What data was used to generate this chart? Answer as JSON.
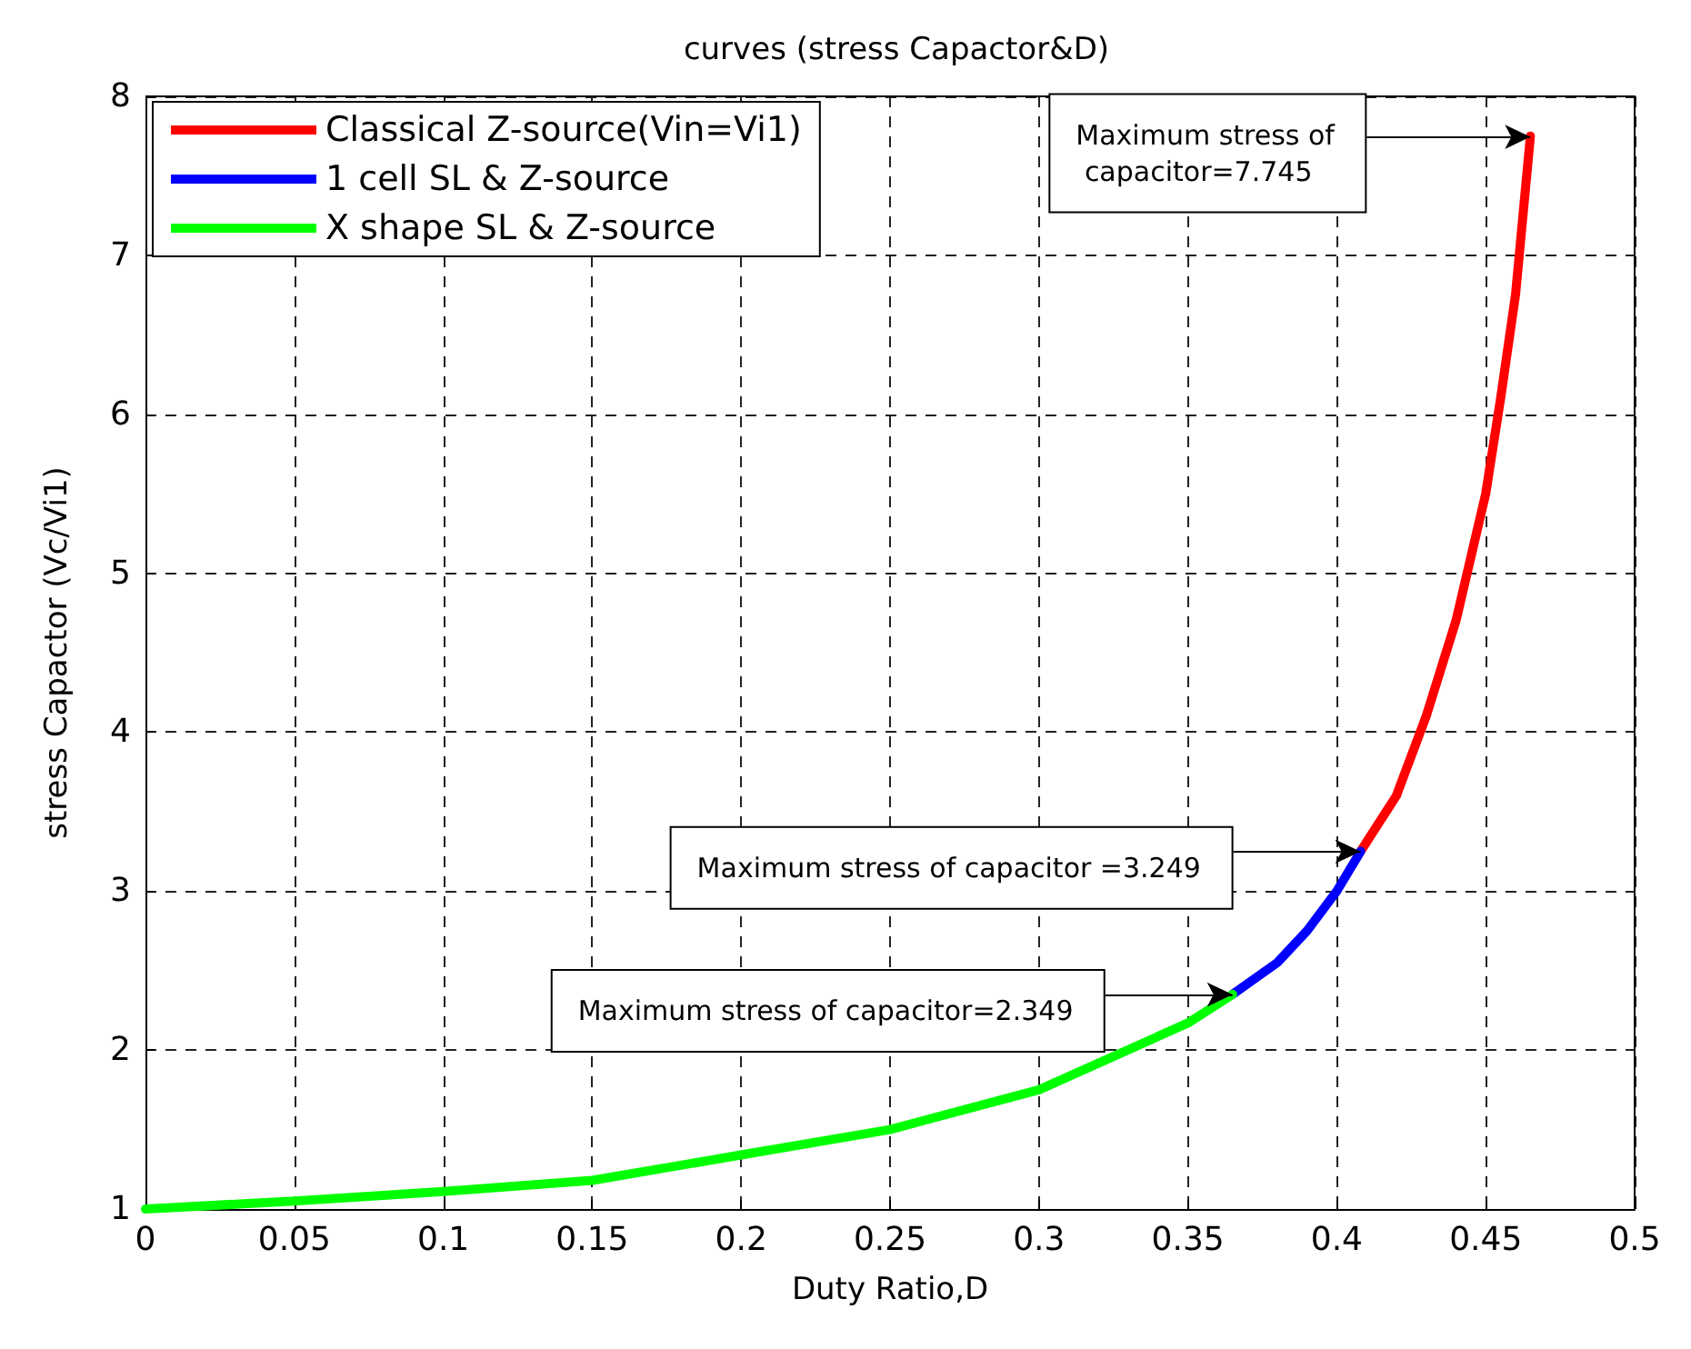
{
  "chart_data": {
    "type": "line",
    "title": "curves (stress Capactor&D)",
    "xlabel": "Duty Ratio,D",
    "ylabel": "stress Capactor (Vc/Vi1)",
    "xlim": [
      0,
      0.5
    ],
    "xticks": [
      0,
      0.05,
      0.1,
      0.15,
      0.2,
      0.25,
      0.3,
      0.35,
      0.4,
      0.45,
      0.5
    ],
    "ylim": [
      1,
      8
    ],
    "yticks": [
      1,
      2,
      3,
      4,
      5,
      6,
      7,
      8
    ],
    "grid": true,
    "legend": "top left",
    "line_style": "solid",
    "marker": "none",
    "series": [
      {
        "name": "Classical Z-source(Vin=Vi1)",
        "color": "#ff0000",
        "x": [
          0.408,
          0.42,
          0.43,
          0.44,
          0.45,
          0.455,
          0.46,
          0.465
        ],
        "values": [
          3.25,
          3.6,
          4.1,
          4.7,
          5.5,
          6.1,
          6.75,
          7.75
        ]
      },
      {
        "name": "1 cell SL & Z-source",
        "color": "#0000ff",
        "x": [
          0.365,
          0.38,
          0.39,
          0.4,
          0.408
        ],
        "values": [
          2.35,
          2.55,
          2.75,
          3.0,
          3.25
        ]
      },
      {
        "name": "X shape SL & Z-source",
        "color": "#00ff00",
        "x": [
          0,
          0.05,
          0.1,
          0.15,
          0.2,
          0.25,
          0.3,
          0.35,
          0.365
        ],
        "values": [
          1,
          1.05,
          1.11,
          1.18,
          1.34,
          1.5,
          1.75,
          2.17,
          2.35
        ]
      }
    ],
    "annotations": [
      {
        "text": "Maximum stress of capacitor=7.745",
        "x": 0.465,
        "y": 7.745
      },
      {
        "text": "Maximum stress of capacitor =3.249",
        "x": 0.408,
        "y": 3.249
      },
      {
        "text": "Maximum stress of capacitor=2.349",
        "x": 0.365,
        "y": 2.349
      }
    ]
  }
}
